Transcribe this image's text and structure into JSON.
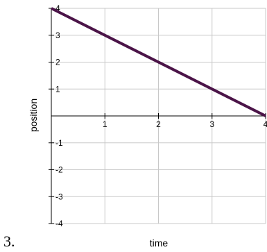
{
  "item_number": "3.",
  "chart_data": {
    "type": "line",
    "xlabel": "time",
    "ylabel": "position",
    "xlim": [
      0,
      4
    ],
    "ylim": [
      -4,
      4
    ],
    "grid": true,
    "x_ticks": [
      "1",
      "2",
      "3",
      "4"
    ],
    "y_ticks": [
      "4",
      "3",
      "2",
      "1",
      "-1",
      "-2",
      "-3",
      "-4"
    ],
    "series": [
      {
        "x": [
          0,
          4
        ],
        "y": [
          4,
          0
        ],
        "color": "#4b1448"
      }
    ]
  }
}
